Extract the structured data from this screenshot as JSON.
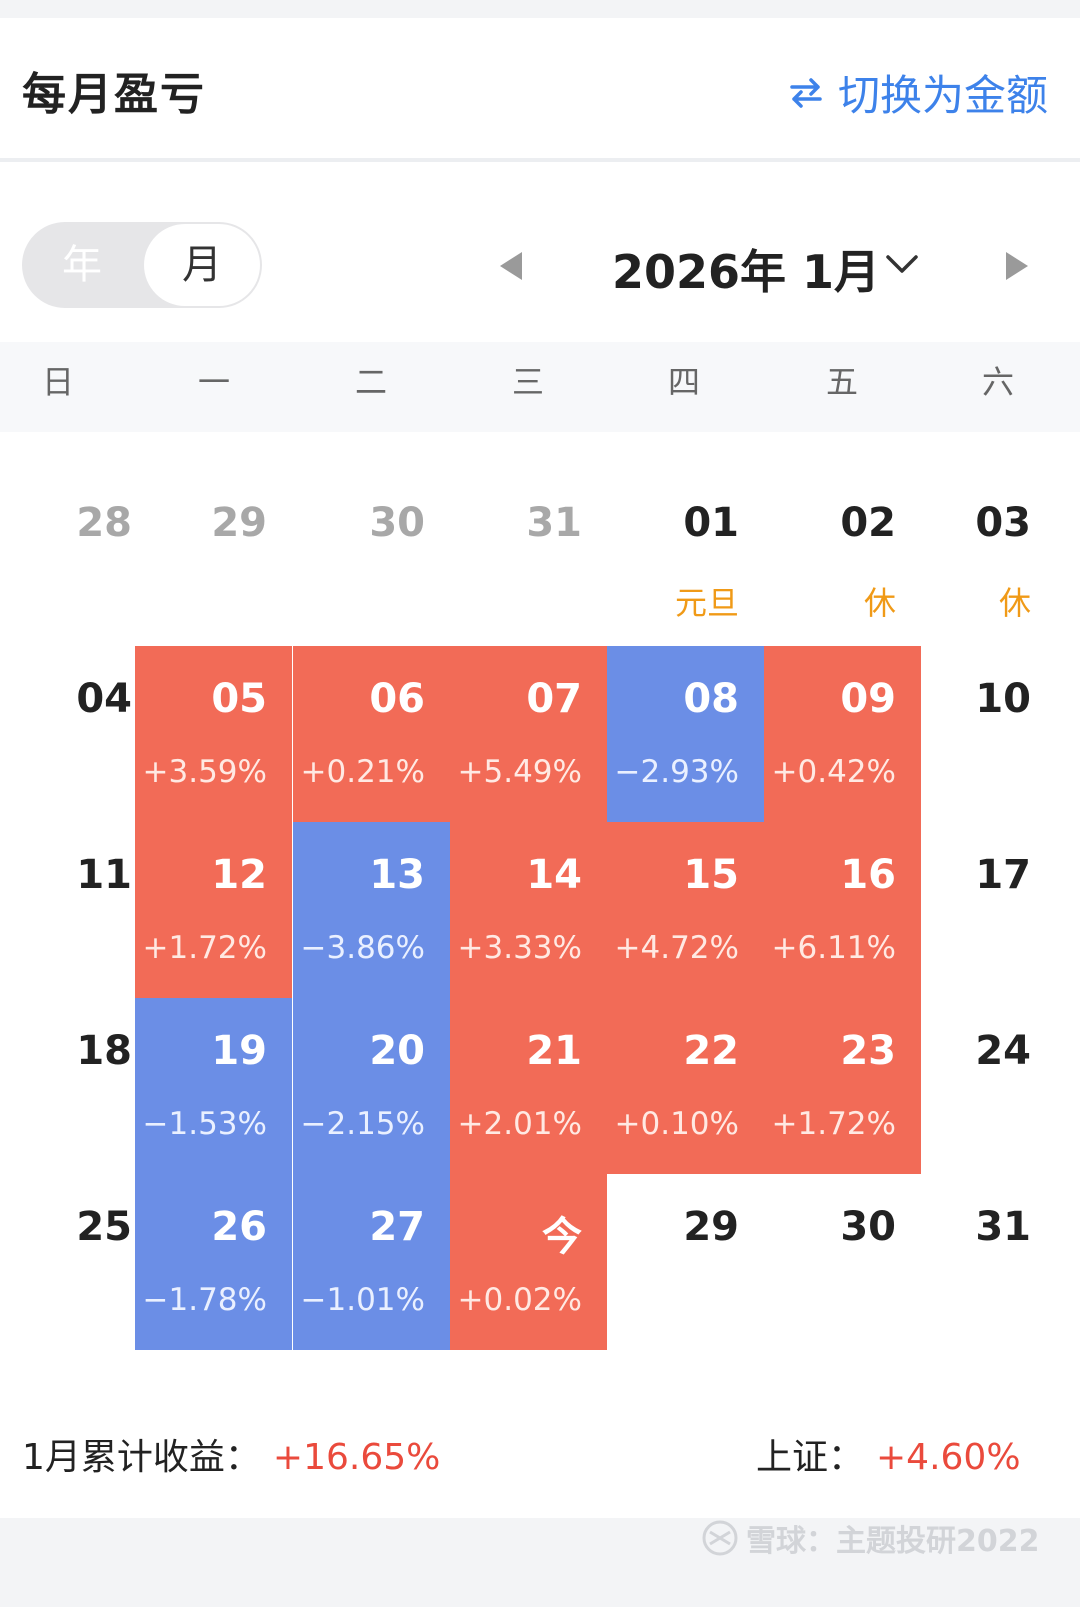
{
  "header": {
    "title": "每月盈亏",
    "switch_label": "切换为金额"
  },
  "toggle": {
    "year_label": "年",
    "month_label": "月",
    "selected": "月"
  },
  "nav": {
    "month_label": "2026年 1月"
  },
  "weekdays": [
    "日",
    "一",
    "二",
    "三",
    "四",
    "五",
    "六"
  ],
  "calendar": {
    "rows": [
      [
        {
          "num": "28",
          "style": "gray"
        },
        {
          "num": "29",
          "style": "gray"
        },
        {
          "num": "30",
          "style": "gray"
        },
        {
          "num": "31",
          "style": "gray"
        },
        {
          "num": "01",
          "style": "plain",
          "holiday": "元旦"
        },
        {
          "num": "02",
          "style": "plain",
          "holiday": "休"
        },
        {
          "num": "03",
          "style": "plain",
          "holiday": "休"
        }
      ],
      [
        {
          "num": "04",
          "style": "plain"
        },
        {
          "num": "05",
          "style": "red",
          "pct": "+3.59%"
        },
        {
          "num": "06",
          "style": "red",
          "pct": "+0.21%"
        },
        {
          "num": "07",
          "style": "red",
          "pct": "+5.49%"
        },
        {
          "num": "08",
          "style": "blue",
          "pct": "−2.93%"
        },
        {
          "num": "09",
          "style": "red",
          "pct": "+0.42%"
        },
        {
          "num": "10",
          "style": "plain"
        }
      ],
      [
        {
          "num": "11",
          "style": "plain"
        },
        {
          "num": "12",
          "style": "red",
          "pct": "+1.72%"
        },
        {
          "num": "13",
          "style": "blue",
          "pct": "−3.86%"
        },
        {
          "num": "14",
          "style": "red",
          "pct": "+3.33%"
        },
        {
          "num": "15",
          "style": "red",
          "pct": "+4.72%"
        },
        {
          "num": "16",
          "style": "red",
          "pct": "+6.11%"
        },
        {
          "num": "17",
          "style": "plain"
        }
      ],
      [
        {
          "num": "18",
          "style": "plain"
        },
        {
          "num": "19",
          "style": "blue",
          "pct": "−1.53%"
        },
        {
          "num": "20",
          "style": "blue",
          "pct": "−2.15%"
        },
        {
          "num": "21",
          "style": "red",
          "pct": "+2.01%"
        },
        {
          "num": "22",
          "style": "red",
          "pct": "+0.10%"
        },
        {
          "num": "23",
          "style": "red",
          "pct": "+1.72%"
        },
        {
          "num": "24",
          "style": "plain"
        }
      ],
      [
        {
          "num": "25",
          "style": "plain"
        },
        {
          "num": "26",
          "style": "blue",
          "pct": "−1.78%"
        },
        {
          "num": "27",
          "style": "blue",
          "pct": "−1.01%"
        },
        {
          "num": "今",
          "style": "red",
          "pct": "+0.02%"
        },
        {
          "num": "29",
          "style": "plain"
        },
        {
          "num": "30",
          "style": "plain"
        },
        {
          "num": "31",
          "style": "plain"
        }
      ]
    ]
  },
  "summary": {
    "label": "1月累计收益：",
    "value": "+16.65%"
  },
  "index": {
    "label": "上证：",
    "value": "+4.60%"
  },
  "watermark": {
    "text": "雪球：主题投研2022"
  },
  "colors": {
    "up": "#f26b57",
    "down": "#6b8ee6",
    "accent": "#3d82ea",
    "holiday": "#f09a17"
  },
  "icons": {
    "switch": "swap-arrows-icon",
    "prev": "triangle-left-icon",
    "next": "triangle-right-icon",
    "dropdown": "chevron-down-icon"
  }
}
